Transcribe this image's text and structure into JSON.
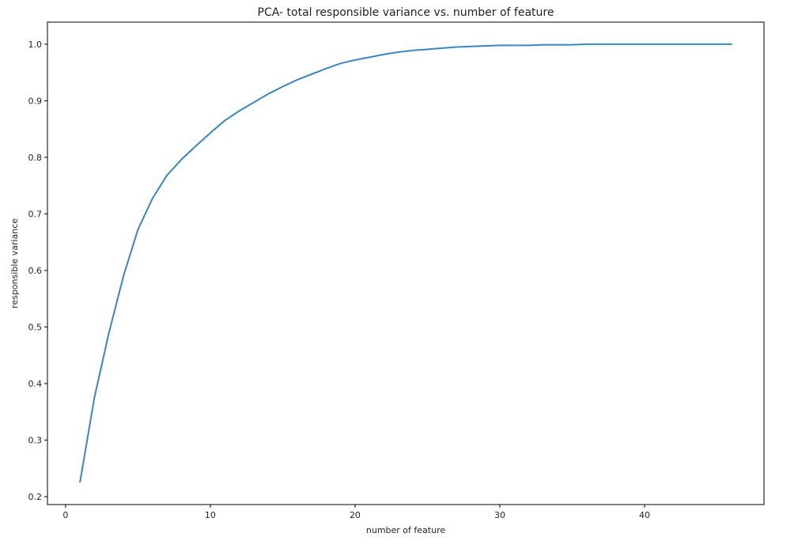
{
  "chart_data": {
    "type": "line",
    "title": "PCA- total responsible variance vs.  number of feature",
    "xlabel": "number of feature",
    "ylabel": "responsible variance",
    "xlim": [
      -1.25,
      48.25
    ],
    "ylim": [
      0.186,
      1.039
    ],
    "xticks": [
      0,
      10,
      20,
      30,
      40
    ],
    "yticks": [
      0.2,
      0.3,
      0.4,
      0.5,
      0.6,
      0.7,
      0.8,
      0.9,
      1.0
    ],
    "grid": false,
    "line_color": "#3a87bf",
    "x": [
      1,
      2,
      3,
      4,
      5,
      6,
      7,
      8,
      9,
      10,
      11,
      12,
      13,
      14,
      15,
      16,
      17,
      18,
      19,
      20,
      21,
      22,
      23,
      24,
      25,
      26,
      27,
      28,
      29,
      30,
      31,
      32,
      33,
      34,
      35,
      36,
      37,
      38,
      39,
      40,
      41,
      42,
      43,
      44,
      45,
      46
    ],
    "y": [
      0.226,
      0.376,
      0.49,
      0.59,
      0.672,
      0.727,
      0.768,
      0.796,
      0.82,
      0.843,
      0.865,
      0.882,
      0.897,
      0.912,
      0.925,
      0.937,
      0.947,
      0.957,
      0.966,
      0.972,
      0.977,
      0.982,
      0.986,
      0.989,
      0.991,
      0.993,
      0.995,
      0.996,
      0.997,
      0.998,
      0.998,
      0.998,
      0.999,
      0.999,
      0.999,
      1.0,
      1.0,
      1.0,
      1.0,
      1.0,
      1.0,
      1.0,
      1.0,
      1.0,
      1.0,
      1.0
    ]
  }
}
